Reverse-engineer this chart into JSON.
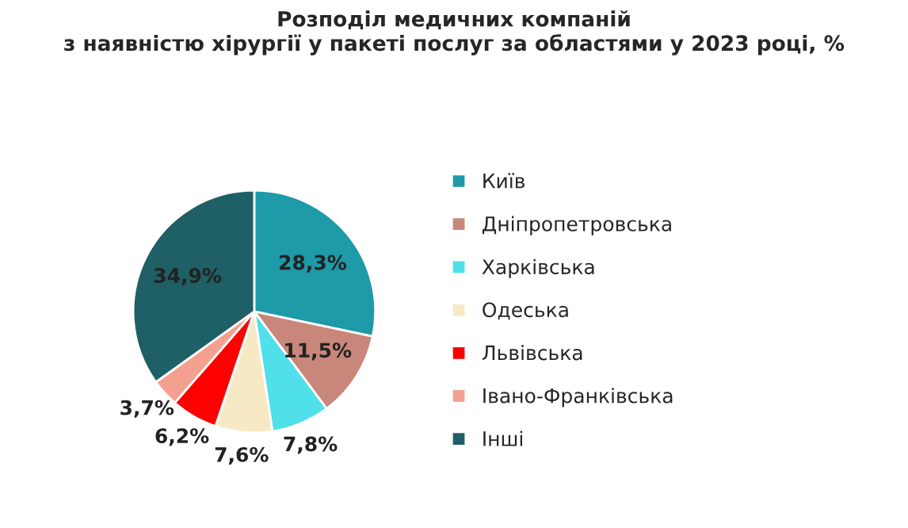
{
  "chart_data": {
    "type": "pie",
    "title": "Розподіл медичних компаній\nз наявністю хірургії у пакеті послуг за областями у 2023 році, %",
    "categories": [
      "Київ",
      "Дніпропетровська",
      "Харківська",
      "Одеська",
      "Львівська",
      "Івано-Франківська",
      "Інші"
    ],
    "values": [
      28.3,
      11.5,
      7.8,
      7.6,
      6.2,
      3.7,
      34.9
    ],
    "value_labels": [
      "28,3%",
      "11,5%",
      "7,8%",
      "7,6%",
      "6,2%",
      "3,7%",
      "34,9%"
    ],
    "colors": [
      "#1e9aa8",
      "#c8877a",
      "#4fe0ea",
      "#f6e9c4",
      "#ff0000",
      "#f4a090",
      "#1f5f66"
    ],
    "legend": "right"
  }
}
